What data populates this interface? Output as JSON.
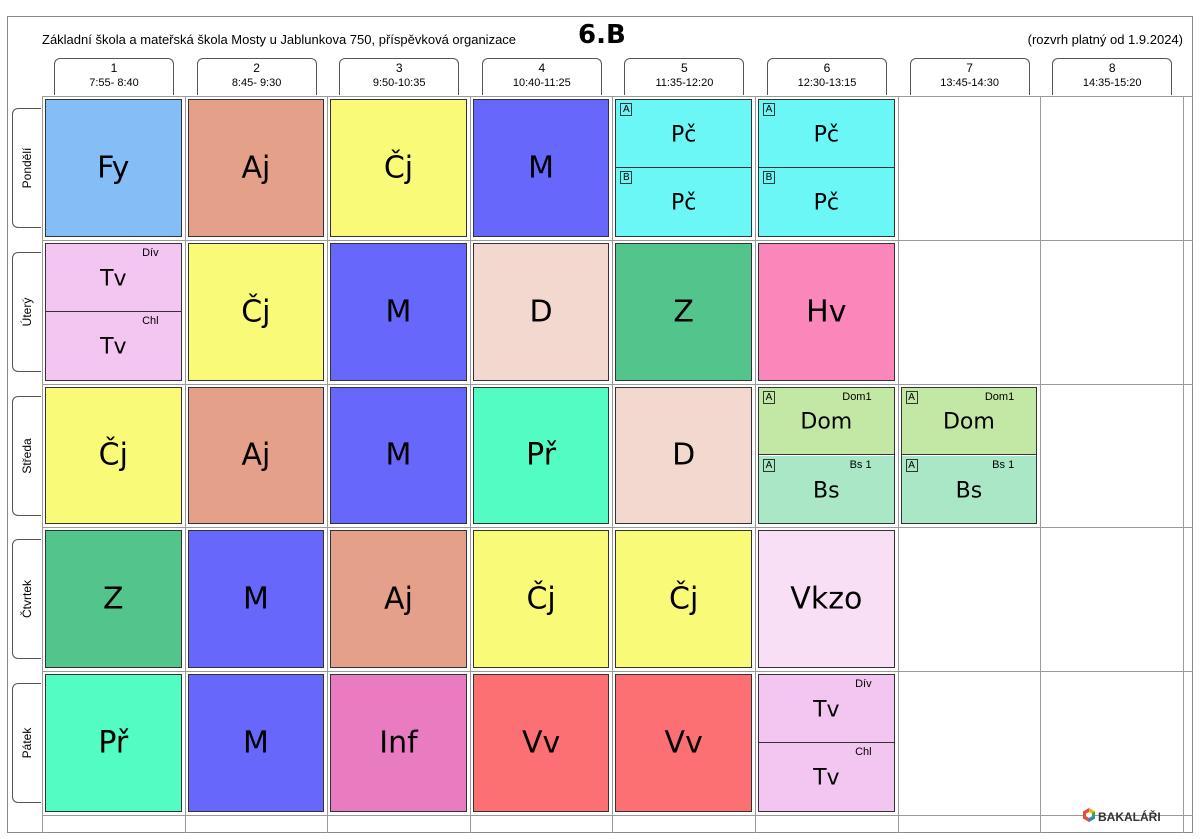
{
  "header": {
    "school": "Základní škola a mateřská škola Mosty u Jablunkova 750, příspěvková organizace",
    "class_name": "6.B",
    "validity": "(rozvrh platný od 1.9.2024)"
  },
  "periods": [
    {
      "num": "1",
      "time": "7:55- 8:40"
    },
    {
      "num": "2",
      "time": "8:45- 9:30"
    },
    {
      "num": "3",
      "time": "9:50-10:35"
    },
    {
      "num": "4",
      "time": "10:40-11:25"
    },
    {
      "num": "5",
      "time": "11:35-12:20"
    },
    {
      "num": "6",
      "time": "12:30-13:15"
    },
    {
      "num": "7",
      "time": "13:45-14:30"
    },
    {
      "num": "8",
      "time": "14:35-15:20"
    }
  ],
  "days": [
    "Pondělí",
    "Úterý",
    "Středa",
    "Čtvrtek",
    "Pátek"
  ],
  "lessons": [
    [
      {
        "subject": "Fy",
        "color": "#85bdf7"
      },
      {
        "subject": "Aj",
        "color": "#e5a08a"
      },
      {
        "subject": "Čj",
        "color": "#f9fa78"
      },
      {
        "subject": "M",
        "color": "#6767fc"
      },
      {
        "split": true,
        "color": "#6cf7f7",
        "parts": [
          {
            "subject": "Pč",
            "group": "A"
          },
          {
            "subject": "Pč",
            "group": "B"
          }
        ]
      },
      {
        "split": true,
        "color": "#6cf7f7",
        "parts": [
          {
            "subject": "Pč",
            "group": "A"
          },
          {
            "subject": "Pč",
            "group": "B"
          }
        ]
      },
      null,
      null
    ],
    [
      {
        "split": true,
        "color": "#f3c6f1",
        "parts": [
          {
            "subject": "Tv",
            "room": "Dív"
          },
          {
            "subject": "Tv",
            "room": "Chl"
          }
        ]
      },
      {
        "subject": "Čj",
        "color": "#f9fa78"
      },
      {
        "subject": "M",
        "color": "#6767fc"
      },
      {
        "subject": "D",
        "color": "#f3d8cf"
      },
      {
        "subject": "Z",
        "color": "#53c48c"
      },
      {
        "subject": "Hv",
        "color": "#fb86b9"
      },
      null,
      null
    ],
    [
      {
        "subject": "Čj",
        "color": "#f9fa78"
      },
      {
        "subject": "Aj",
        "color": "#e5a08a"
      },
      {
        "subject": "M",
        "color": "#6767fc"
      },
      {
        "subject": "Př",
        "color": "#52fcc2"
      },
      {
        "subject": "D",
        "color": "#f3d8cf"
      },
      {
        "split": true,
        "colors": [
          "#c3e7a4",
          "#a9e7c7"
        ],
        "parts": [
          {
            "subject": "Dom",
            "group": "A",
            "room": "Dom1"
          },
          {
            "subject": "Bs",
            "group": "A",
            "room": "Bs 1"
          }
        ]
      },
      {
        "split": true,
        "colors": [
          "#c3e7a4",
          "#a9e7c7"
        ],
        "parts": [
          {
            "subject": "Dom",
            "group": "A",
            "room": "Dom1"
          },
          {
            "subject": "Bs",
            "group": "A",
            "room": "Bs 1"
          }
        ]
      },
      null
    ],
    [
      {
        "subject": "Z",
        "color": "#53c48c"
      },
      {
        "subject": "M",
        "color": "#6767fc"
      },
      {
        "subject": "Aj",
        "color": "#e5a08a"
      },
      {
        "subject": "Čj",
        "color": "#f9fa78"
      },
      {
        "subject": "Čj",
        "color": "#f9fa78"
      },
      {
        "subject": "Vkzo",
        "color": "#f8dff5"
      },
      null,
      null
    ],
    [
      {
        "subject": "Př",
        "color": "#52fcc2"
      },
      {
        "subject": "M",
        "color": "#6767fc"
      },
      {
        "subject": "Inf",
        "color": "#e97bc0"
      },
      {
        "subject": "Vv",
        "color": "#fc7074"
      },
      {
        "subject": "Vv",
        "color": "#fc7074"
      },
      {
        "split": true,
        "color": "#f3c6f1",
        "parts": [
          {
            "subject": "Tv",
            "room": "Dív"
          },
          {
            "subject": "Tv",
            "room": "Chl"
          }
        ]
      },
      null,
      null
    ]
  ],
  "footer": {
    "logo_text": "BAKALÁŘI",
    "logo_icon": "bakalari-logo-icon"
  }
}
